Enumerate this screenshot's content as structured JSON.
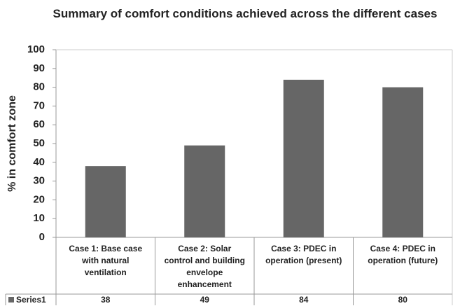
{
  "chart_data": {
    "type": "bar",
    "title": "Summary of comfort conditions achieved across the different cases",
    "y_label": "% in comfort zone",
    "categories": [
      "Case 1: Base case with natural ventilation",
      "Case 2: Solar control and building envelope enhancement",
      "Case 3: PDEC in operation (present)",
      "Case 4: PDEC in operation (future)"
    ],
    "series": [
      {
        "name": "Series1",
        "color": "#666666",
        "values": [
          38,
          49,
          84,
          80
        ]
      }
    ],
    "ylim": [
      0,
      100
    ],
    "yticks": [
      0,
      10,
      20,
      30,
      40,
      50,
      60,
      70,
      80,
      90,
      100
    ],
    "grid": false
  }
}
